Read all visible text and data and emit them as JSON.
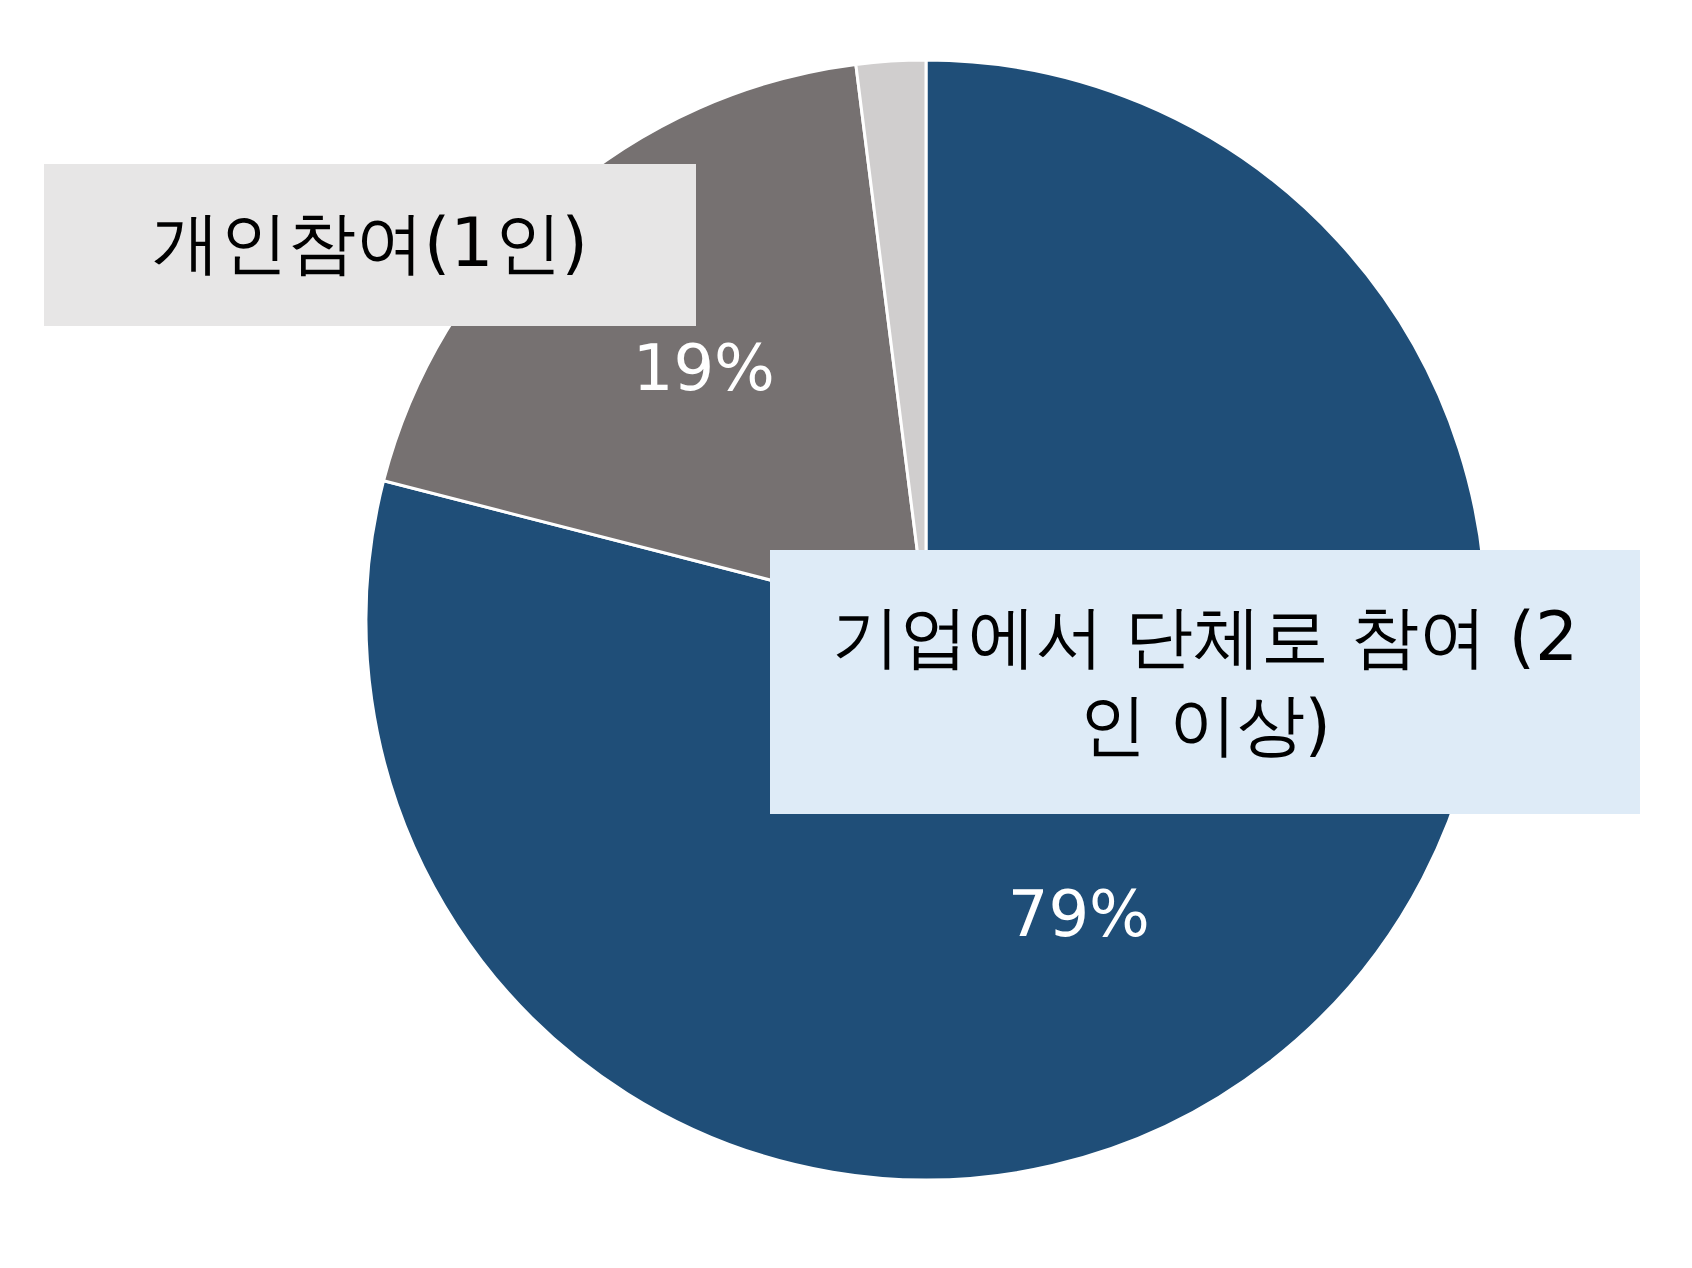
{
  "chart_data": {
    "type": "pie",
    "categories": [
      "기업에서 단체로 참여 (2인 이상)",
      "개인참여(1인)",
      null
    ],
    "values": [
      79,
      19,
      2
    ],
    "colors": [
      "#1f4e78",
      "#767171",
      "#d0cece"
    ],
    "value_labels": [
      "79%",
      "19%",
      null
    ]
  }
}
